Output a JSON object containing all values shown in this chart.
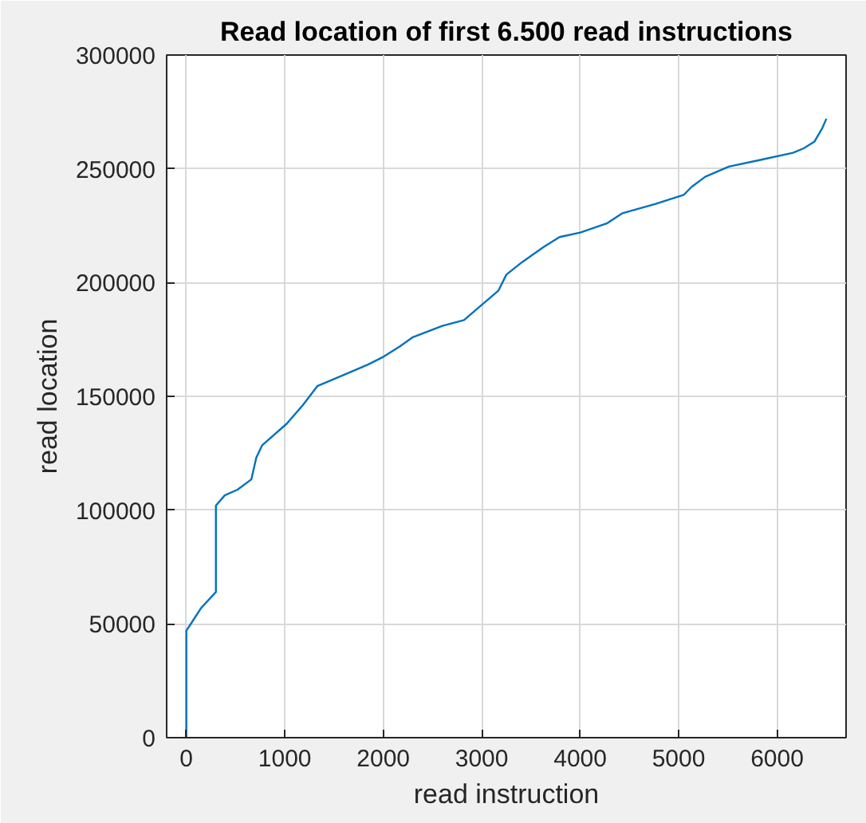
{
  "chart_data": {
    "type": "line",
    "title": "Read location of first 6.500 read instructions",
    "xlabel": "read instruction",
    "ylabel": "read location",
    "x": [
      0,
      0,
      60,
      150,
      300,
      300,
      390,
      520,
      660,
      710,
      770,
      1020,
      1180,
      1330,
      1575,
      1845,
      2006,
      2170,
      2300,
      2600,
      2820,
      2900,
      3170,
      3250,
      3410,
      3625,
      3790,
      4000,
      4270,
      4430,
      4760,
      5050,
      5130,
      5270,
      5510,
      5840,
      6160,
      6270,
      6380,
      6460,
      6500
    ],
    "series": [
      {
        "color": "#0072bd",
        "values": [
          0,
          47000,
          51000,
          57000,
          64000,
          102000,
          106500,
          109000,
          113500,
          123000,
          128500,
          138000,
          146000,
          154500,
          159000,
          164000,
          167500,
          172000,
          176000,
          181000,
          183500,
          186500,
          196500,
          203500,
          209000,
          215500,
          220000,
          222000,
          226000,
          230500,
          234500,
          238500,
          242000,
          246500,
          251000,
          254000,
          257000,
          259000,
          262000,
          268000,
          272000
        ]
      }
    ],
    "xlim": [
      -200,
      6700
    ],
    "ylim": [
      0,
      300000
    ],
    "xticks": [
      0,
      1000,
      2000,
      3000,
      4000,
      5000,
      6000
    ],
    "yticks": [
      0,
      50000,
      100000,
      150000,
      200000,
      250000,
      300000
    ],
    "grid": true
  }
}
